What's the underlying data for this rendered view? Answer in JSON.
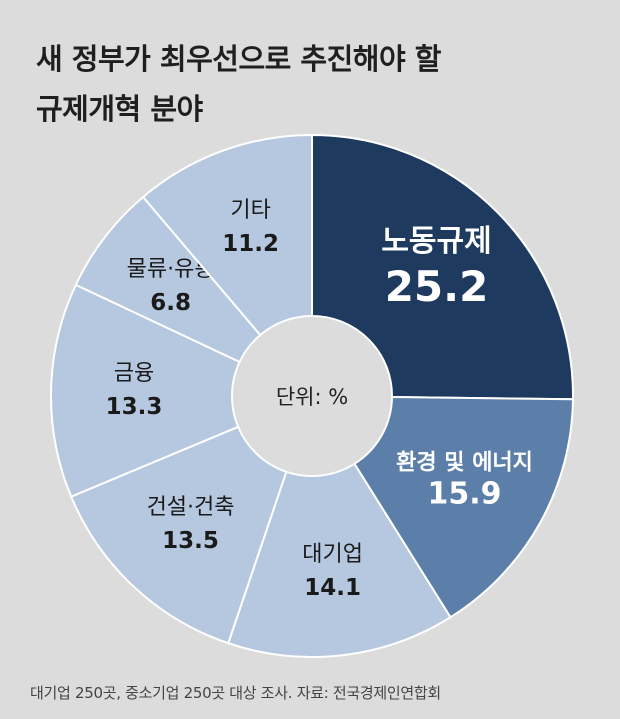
{
  "title_line1": "새 정부가 최우선으로 추진해야 할",
  "title_line2": "규제개혁 분야",
  "source": "대기업 250곳, 중소기업 250곳 대상 조사. 자료: 전국경제인연합회",
  "chart_data": {
    "type": "pie",
    "donut": true,
    "center_label": "단위: %",
    "unit": "%",
    "slices": [
      {
        "label": "노동규제",
        "value": 25.2,
        "color": "#1e3a5f",
        "text_color": "#ffffff"
      },
      {
        "label": "환경 및 에너지",
        "value": 15.9,
        "color": "#5b7fa8",
        "text_color": "#ffffff"
      },
      {
        "label": "대기업",
        "value": 14.1,
        "color": "#b5c8e0",
        "text_color": "#1a1a1a"
      },
      {
        "label": "건설·건축",
        "value": 13.5,
        "color": "#b5c8e0",
        "text_color": "#1a1a1a"
      },
      {
        "label": "금융",
        "value": 13.3,
        "color": "#b5c8e0",
        "text_color": "#1a1a1a"
      },
      {
        "label": "물류·유통",
        "value": 6.8,
        "color": "#b5c8e0",
        "text_color": "#1a1a1a"
      },
      {
        "label": "기타",
        "value": 11.2,
        "color": "#b5c8e0",
        "text_color": "#1a1a1a"
      }
    ]
  }
}
